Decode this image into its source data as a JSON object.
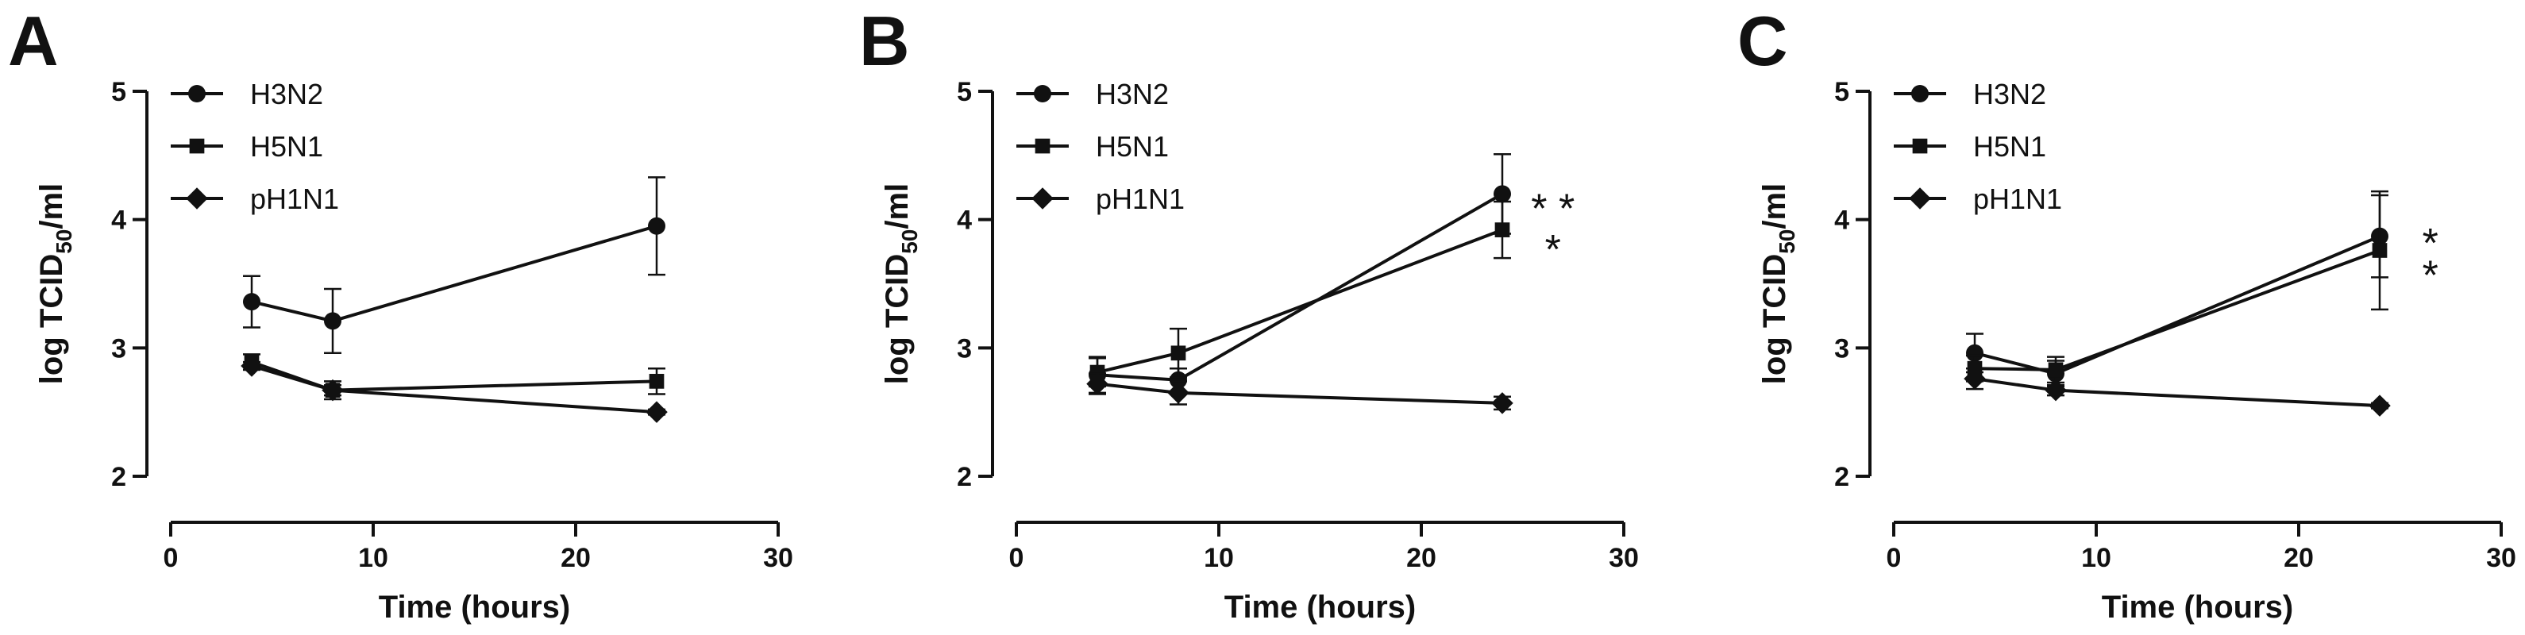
{
  "chart_data": [
    {
      "type": "line",
      "panel_label": "A",
      "xlabel": "Time (hours)",
      "ylabel_prefix": "log TCID",
      "ylabel_sub": "50",
      "ylabel_suffix": "/ml",
      "xlim": [
        0,
        30
      ],
      "ylim": [
        2,
        5
      ],
      "xticks": [
        "0",
        "10",
        "20",
        "30"
      ],
      "yticks": [
        "2",
        "3",
        "4",
        "5"
      ],
      "legend": {
        "position": "top-left"
      },
      "x": [
        4,
        8,
        24
      ],
      "series": [
        {
          "name": "H3N2",
          "marker": "circle",
          "values": [
            3.36,
            3.21,
            3.95
          ],
          "errors": [
            0.2,
            0.25,
            0.38
          ]
        },
        {
          "name": "H5N1",
          "marker": "square",
          "values": [
            2.89,
            2.67,
            2.74
          ],
          "errors": [
            0.06,
            0.07,
            0.1
          ]
        },
        {
          "name": "pH1N1",
          "marker": "diamond",
          "values": [
            2.86,
            2.67,
            2.5
          ],
          "errors": [
            0.03,
            0.04,
            0.02
          ]
        }
      ],
      "annotations": []
    },
    {
      "type": "line",
      "panel_label": "B",
      "xlabel": "Time (hours)",
      "ylabel_prefix": "log TCID",
      "ylabel_sub": "50",
      "ylabel_suffix": "/ml",
      "xlim": [
        0,
        30
      ],
      "ylim": [
        2,
        5
      ],
      "xticks": [
        "0",
        "10",
        "20",
        "30"
      ],
      "yticks": [
        "2",
        "3",
        "4",
        "5"
      ],
      "legend": {
        "position": "top-left"
      },
      "x": [
        4,
        8,
        24
      ],
      "series": [
        {
          "name": "H3N2",
          "marker": "circle",
          "values": [
            2.79,
            2.75,
            4.2
          ],
          "errors": [
            0.14,
            0.09,
            0.31
          ]
        },
        {
          "name": "H5N1",
          "marker": "square",
          "values": [
            2.81,
            2.96,
            3.92
          ],
          "errors": [
            0.11,
            0.19,
            0.22
          ]
        },
        {
          "name": "pH1N1",
          "marker": "diamond",
          "values": [
            2.72,
            2.65,
            2.57
          ],
          "errors": [
            0.08,
            0.09,
            0.05
          ]
        }
      ],
      "annotations": [
        {
          "text": "* *",
          "x": 26.5,
          "y": 4.15
        },
        {
          "text": "*",
          "x": 26.5,
          "y": 3.83
        }
      ]
    },
    {
      "type": "line",
      "panel_label": "C",
      "xlabel": "Time (hours)",
      "ylabel_prefix": "log TCID",
      "ylabel_sub": "50",
      "ylabel_suffix": "/ml",
      "xlim": [
        0,
        30
      ],
      "ylim": [
        2,
        5
      ],
      "xticks": [
        "0",
        "10",
        "20",
        "30"
      ],
      "yticks": [
        "2",
        "3",
        "4",
        "5"
      ],
      "legend": {
        "position": "top-left"
      },
      "x": [
        4,
        8,
        24
      ],
      "series": [
        {
          "name": "H3N2",
          "marker": "circle",
          "values": [
            2.96,
            2.8,
            3.87
          ],
          "errors": [
            0.15,
            0.1,
            0.32
          ]
        },
        {
          "name": "H5N1",
          "marker": "square",
          "values": [
            2.84,
            2.83,
            3.76
          ],
          "errors": [
            0.1,
            0.1,
            0.46
          ]
        },
        {
          "name": "pH1N1",
          "marker": "diamond",
          "values": [
            2.76,
            2.67,
            2.55
          ],
          "errors": [
            0.08,
            0.04,
            0.02
          ]
        }
      ],
      "annotations": [
        {
          "text": "*",
          "x": 26.5,
          "y": 3.88
        },
        {
          "text": "*",
          "x": 26.5,
          "y": 3.63
        }
      ]
    }
  ]
}
